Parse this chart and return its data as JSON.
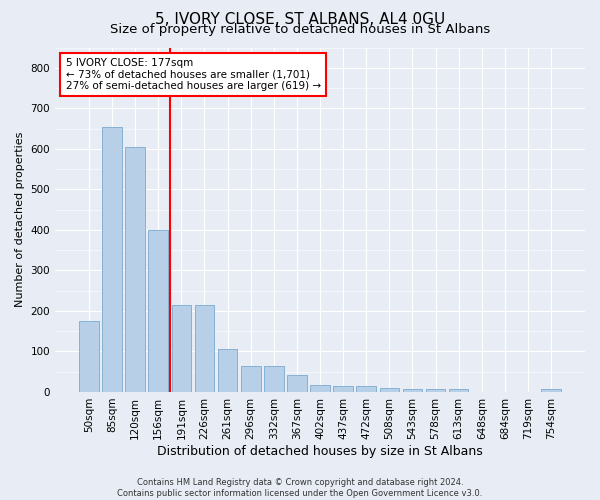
{
  "title": "5, IVORY CLOSE, ST ALBANS, AL4 0GU",
  "subtitle": "Size of property relative to detached houses in St Albans",
  "xlabel": "Distribution of detached houses by size in St Albans",
  "ylabel": "Number of detached properties",
  "categories": [
    "50sqm",
    "85sqm",
    "120sqm",
    "156sqm",
    "191sqm",
    "226sqm",
    "261sqm",
    "296sqm",
    "332sqm",
    "367sqm",
    "402sqm",
    "437sqm",
    "472sqm",
    "508sqm",
    "543sqm",
    "578sqm",
    "613sqm",
    "648sqm",
    "684sqm",
    "719sqm",
    "754sqm"
  ],
  "values": [
    175,
    655,
    605,
    400,
    215,
    215,
    105,
    63,
    63,
    43,
    17,
    15,
    14,
    10,
    8,
    8,
    8,
    0,
    0,
    0,
    7
  ],
  "bar_color": "#b8cfe8",
  "bar_edge_color": "#7aaad0",
  "vline_color": "red",
  "annotation_text": "5 IVORY CLOSE: 177sqm\n← 73% of detached houses are smaller (1,701)\n27% of semi-detached houses are larger (619) →",
  "annotation_box_color": "white",
  "annotation_box_edge": "red",
  "ylim": [
    0,
    850
  ],
  "yticks": [
    0,
    100,
    200,
    300,
    400,
    500,
    600,
    700,
    800
  ],
  "background_color": "#e8edf5",
  "plot_background": "#e8edf5",
  "footer_line1": "Contains HM Land Registry data © Crown copyright and database right 2024.",
  "footer_line2": "Contains public sector information licensed under the Open Government Licence v3.0.",
  "title_fontsize": 11,
  "subtitle_fontsize": 9.5,
  "xlabel_fontsize": 9,
  "ylabel_fontsize": 8,
  "tick_fontsize": 7.5,
  "annotation_fontsize": 7.5,
  "footer_fontsize": 6
}
